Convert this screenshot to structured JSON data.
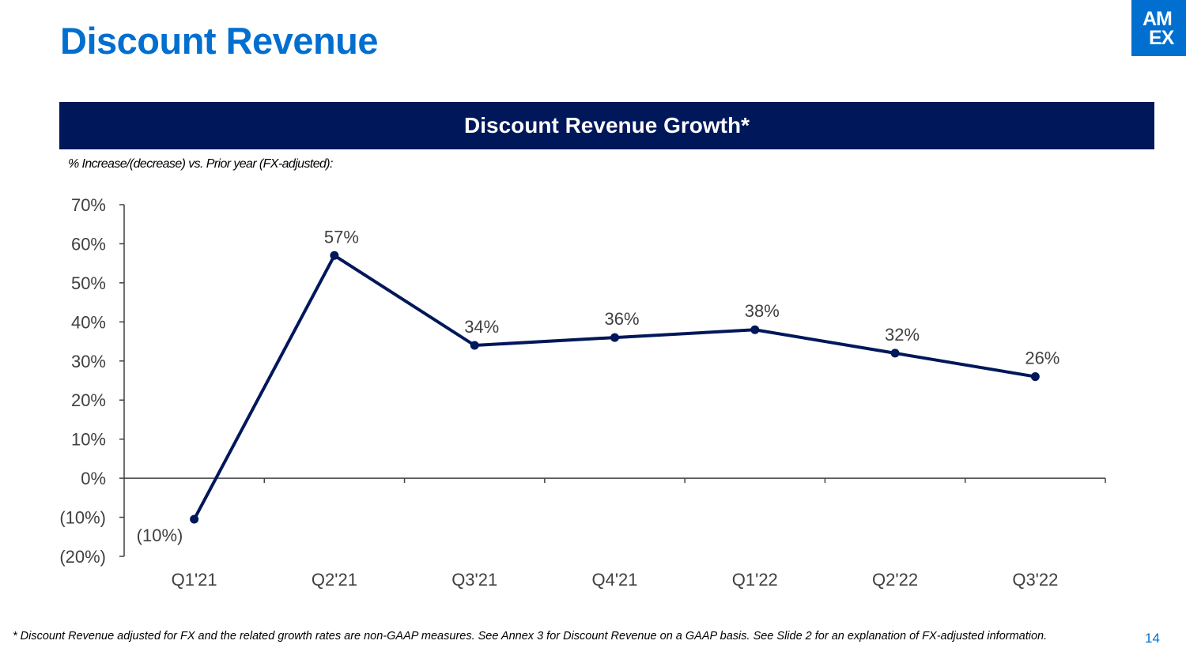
{
  "slide": {
    "title": "Discount Revenue",
    "logo_line1": "AM",
    "logo_line2": "EX",
    "banner": "Discount Revenue Growth*",
    "subtitle": "% Increase/(decrease) vs. Prior year (FX-adjusted):",
    "footnote": "* Discount Revenue adjusted for FX and the related growth rates are non-GAAP measures. See Annex 3 for Discount Revenue on a GAAP basis. See Slide 2 for an explanation of FX-adjusted information.",
    "page_number": "14"
  },
  "colors": {
    "brand_blue": "#006fcf",
    "navy": "#00175a",
    "axis": "#404040",
    "text": "#404040"
  },
  "chart_data": {
    "type": "line",
    "title": "Discount Revenue Growth*",
    "xlabel": "",
    "ylabel": "% Increase/(decrease) vs. Prior year (FX-adjusted):",
    "categories": [
      "Q1'21",
      "Q2'21",
      "Q3'21",
      "Q4'21",
      "Q1'22",
      "Q2'22",
      "Q3'22"
    ],
    "series": [
      {
        "name": "Discount Revenue Growth",
        "values": [
          -10.5,
          57,
          34,
          36,
          38,
          32,
          26
        ],
        "labels": [
          "(10%)",
          "57%",
          "34%",
          "36%",
          "38%",
          "32%",
          "26%"
        ]
      }
    ],
    "ylim": [
      -20,
      70
    ],
    "yticks": [
      -20,
      -10,
      0,
      10,
      20,
      30,
      40,
      50,
      60,
      70
    ],
    "ytick_labels": [
      "(20%)",
      "(10%)",
      "0%",
      "10%",
      "20%",
      "30%",
      "40%",
      "50%",
      "60%",
      "70%"
    ],
    "grid": false,
    "legend": "none"
  }
}
